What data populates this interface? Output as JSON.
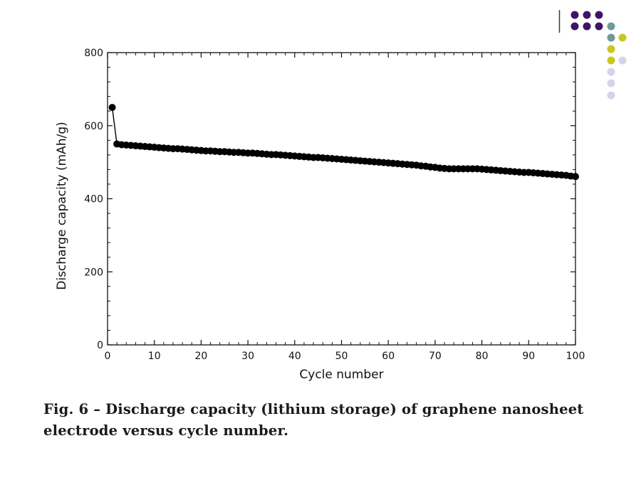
{
  "slide": {
    "caption": "Fig. 6 – Discharge capacity (lithium storage) of graphene nanosheet electrode versus cycle number.",
    "decoration": {
      "dot_colors": [
        "#3d1566",
        "#6e9a9a",
        "#c8c81e",
        "#d4d4e8"
      ]
    }
  },
  "chart_data": {
    "type": "line",
    "title": "",
    "xlabel": "Cycle number",
    "ylabel": "Discharge capacity (mAh/g)",
    "xlim": [
      0,
      100
    ],
    "ylim": [
      0,
      800
    ],
    "xticks": [
      0,
      10,
      20,
      30,
      40,
      50,
      60,
      70,
      80,
      90,
      100
    ],
    "yticks": [
      0,
      200,
      400,
      600,
      800
    ],
    "grid": false,
    "legend": "none",
    "marker": "filled circle",
    "line_color": "#000000",
    "series": [
      {
        "x": [
          1,
          2,
          3,
          4,
          5,
          6,
          7,
          8,
          9,
          10,
          11,
          12,
          13,
          14,
          15,
          16,
          17,
          18,
          19,
          20,
          21,
          22,
          23,
          24,
          25,
          26,
          27,
          28,
          29,
          30,
          31,
          32,
          33,
          34,
          35,
          36,
          37,
          38,
          39,
          40,
          41,
          42,
          43,
          44,
          45,
          46,
          47,
          48,
          49,
          50,
          51,
          52,
          53,
          54,
          55,
          56,
          57,
          58,
          59,
          60,
          61,
          62,
          63,
          64,
          65,
          66,
          67,
          68,
          69,
          70,
          71,
          72,
          73,
          74,
          75,
          76,
          77,
          78,
          79,
          80,
          81,
          82,
          83,
          84,
          85,
          86,
          87,
          88,
          89,
          90,
          91,
          92,
          93,
          94,
          95,
          96,
          97,
          98,
          99,
          100
        ],
        "values": [
          650,
          550,
          548,
          547,
          546,
          545,
          544,
          543,
          542,
          541,
          540,
          539,
          538,
          537,
          537,
          536,
          535,
          534,
          533,
          532,
          531,
          531,
          530,
          529,
          529,
          528,
          527,
          527,
          526,
          525,
          525,
          524,
          523,
          522,
          521,
          521,
          520,
          519,
          518,
          517,
          516,
          515,
          514,
          513,
          513,
          512,
          511,
          510,
          509,
          508,
          507,
          506,
          505,
          504,
          503,
          502,
          501,
          500,
          499,
          498,
          497,
          496,
          495,
          494,
          493,
          492,
          490,
          489,
          487,
          486,
          484,
          483,
          482,
          482,
          482,
          482,
          482,
          482,
          482,
          481,
          480,
          479,
          478,
          477,
          476,
          475,
          474,
          473,
          472,
          472,
          471,
          470,
          469,
          468,
          467,
          466,
          465,
          464,
          462,
          461
        ]
      }
    ]
  }
}
